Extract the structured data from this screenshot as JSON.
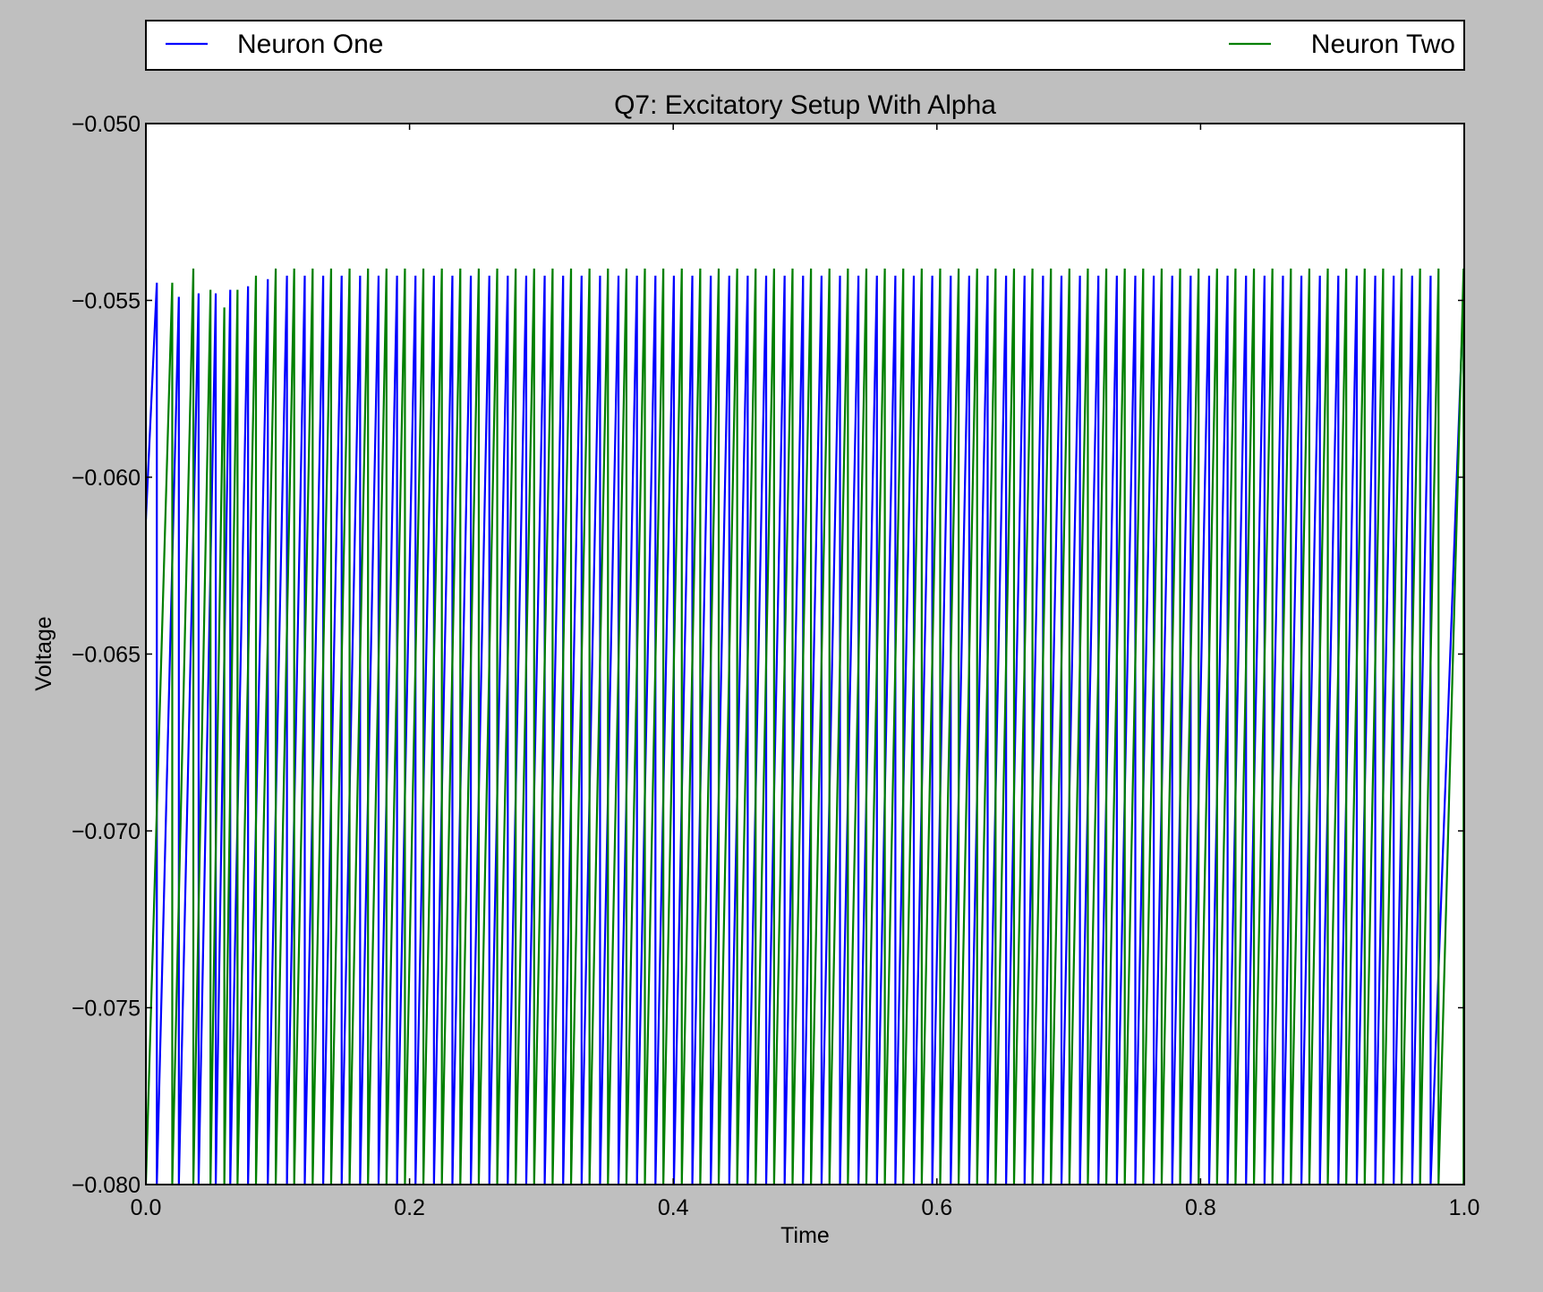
{
  "chart_data": {
    "type": "line",
    "title": "Q7: Excitatory Setup With Alpha",
    "xlabel": "Time",
    "ylabel": "Voltage",
    "xlim": [
      0.0,
      1.0
    ],
    "ylim": [
      -0.08,
      -0.05
    ],
    "x_ticks": [
      0.0,
      0.2,
      0.4,
      0.6,
      0.8,
      1.0
    ],
    "x_tick_labels": [
      "0.0",
      "0.2",
      "0.4",
      "0.6",
      "0.8",
      "1.0"
    ],
    "y_ticks": [
      -0.08,
      -0.075,
      -0.07,
      -0.065,
      -0.06,
      -0.055,
      -0.05
    ],
    "y_tick_labels": [
      "−0.080",
      "−0.075",
      "−0.070",
      "−0.065",
      "−0.060",
      "−0.055",
      "−0.050"
    ],
    "grid": false,
    "legend_placement": "top, above axes",
    "series": [
      {
        "name": "Neuron One",
        "color": "#0000ff",
        "start_voltage": -0.0612,
        "reset_voltage": -0.08,
        "steady_peak_voltage": -0.0543,
        "first_spike_time": 0.0083,
        "spike_times": [
          0.0083,
          0.025,
          0.04,
          0.053,
          0.064,
          0.0775,
          0.0925,
          0.107,
          0.1205,
          0.1345,
          0.1485,
          0.1625,
          0.1765,
          0.1905,
          0.2045,
          0.2185,
          0.2325,
          0.2465,
          0.2605,
          0.2745,
          0.2885,
          0.3025,
          0.3165,
          0.3305,
          0.3445,
          0.3585,
          0.3725,
          0.3865,
          0.4005,
          0.4145,
          0.4285,
          0.4425,
          0.4565,
          0.4705,
          0.4845,
          0.4985,
          0.5125,
          0.5265,
          0.5405,
          0.5545,
          0.5685,
          0.5825,
          0.5965,
          0.6105,
          0.6245,
          0.6385,
          0.6525,
          0.6665,
          0.6805,
          0.6945,
          0.7085,
          0.7225,
          0.7365,
          0.7505,
          0.7645,
          0.7785,
          0.7925,
          0.8065,
          0.8205,
          0.8345,
          0.8485,
          0.8625,
          0.8765,
          0.8905,
          0.9045,
          0.9185,
          0.9325,
          0.9465,
          0.9605,
          0.9745
        ],
        "spike_peaks": [
          -0.0545,
          -0.0549,
          -0.0548,
          -0.0548,
          -0.0547,
          -0.0546,
          -0.0544,
          -0.0543
        ]
      },
      {
        "name": "Neuron Two",
        "color": "#007f00",
        "start_voltage": -0.0541,
        "reset_voltage": -0.08,
        "steady_peak_voltage": -0.0541,
        "first_spike_time": 0.0,
        "spike_times": [
          0.0,
          0.02,
          0.036,
          0.049,
          0.0595,
          0.0695,
          0.0835,
          0.0985,
          0.1125,
          0.1265,
          0.1405,
          0.1545,
          0.1685,
          0.1825,
          0.1965,
          0.2105,
          0.2245,
          0.2385,
          0.2525,
          0.2665,
          0.2805,
          0.2945,
          0.3085,
          0.3225,
          0.3365,
          0.3505,
          0.3645,
          0.3785,
          0.3925,
          0.4065,
          0.4205,
          0.4345,
          0.4485,
          0.4625,
          0.4765,
          0.4905,
          0.5045,
          0.5185,
          0.5325,
          0.5465,
          0.5605,
          0.5745,
          0.5885,
          0.6025,
          0.6165,
          0.6305,
          0.6445,
          0.6585,
          0.6725,
          0.6865,
          0.7005,
          0.7145,
          0.7285,
          0.7425,
          0.7565,
          0.7705,
          0.7845,
          0.7985,
          0.8125,
          0.8265,
          0.8405,
          0.8545,
          0.8685,
          0.8825,
          0.8965,
          0.9105,
          0.9245,
          0.9385,
          0.9525,
          0.9665,
          0.9805,
          0.9995
        ],
        "spike_peaks": [
          -0.0541,
          -0.0545,
          -0.0541,
          -0.0547,
          -0.0552,
          -0.0547,
          -0.0543,
          -0.0541
        ]
      }
    ]
  }
}
